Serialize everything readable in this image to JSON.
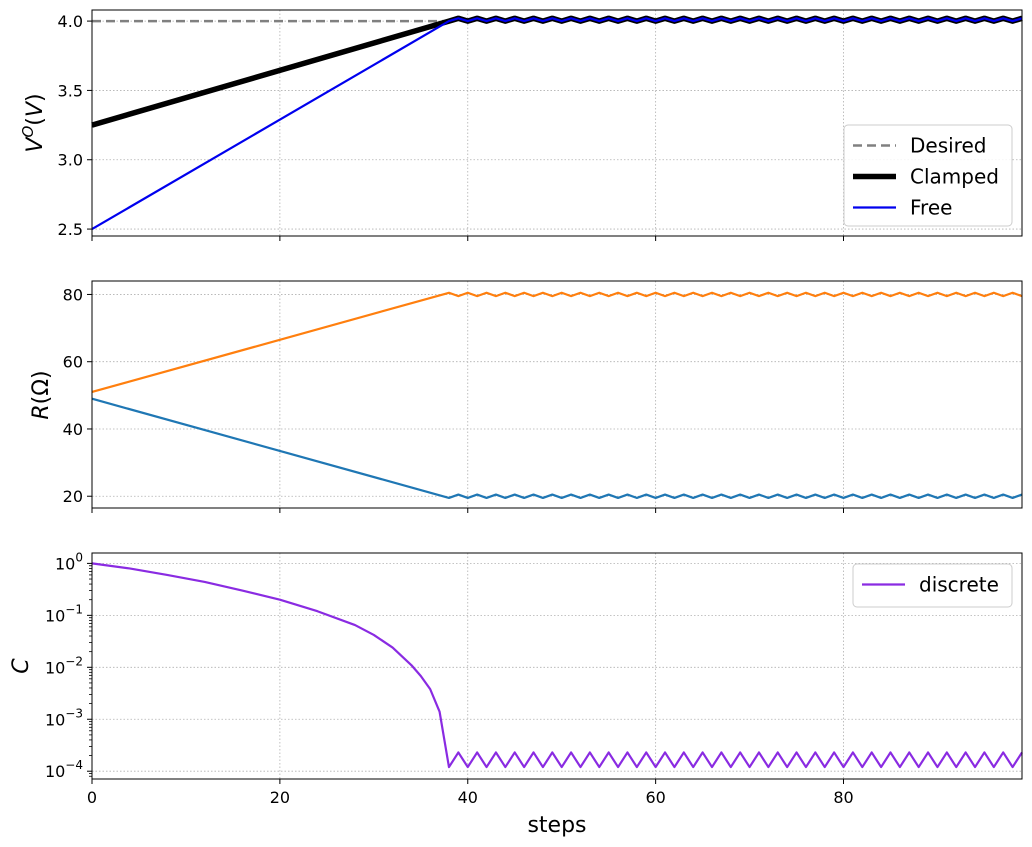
{
  "chart_data": [
    {
      "type": "line",
      "panel": "top",
      "ylabel": "V^O(V)",
      "xlim": [
        0,
        99
      ],
      "ylim": [
        2.45,
        4.08
      ],
      "yticks": [
        {
          "v": 2.5,
          "label": "2.5"
        },
        {
          "v": 3.0,
          "label": "3.0"
        },
        {
          "v": 3.5,
          "label": "3.5"
        },
        {
          "v": 4.0,
          "label": "4.0"
        }
      ],
      "grid": true,
      "legend": {
        "position": "lower-right",
        "entries": [
          {
            "name": "Desired",
            "color": "#808080",
            "style": "dashed"
          },
          {
            "name": "Clamped",
            "color": "#000000",
            "style": "thick"
          },
          {
            "name": "Free",
            "color": "#0000ee",
            "style": "solid"
          }
        ]
      },
      "series": [
        {
          "name": "Desired",
          "color": "#808080",
          "style": "dashed",
          "x": [
            0,
            38
          ],
          "y": [
            4.0,
            4.0
          ]
        },
        {
          "name": "Clamped",
          "color": "#000000",
          "style": "thick",
          "x": [
            0,
            38
          ],
          "y": [
            3.25,
            4.0
          ],
          "after": {
            "from": 38,
            "to": 99,
            "a": 4.0,
            "b": 4.02
          }
        },
        {
          "name": "Free",
          "color": "#0000ee",
          "style": "solid",
          "x": [
            0,
            38
          ],
          "y": [
            2.5,
            4.0
          ],
          "after": {
            "from": 38,
            "to": 99,
            "a": 4.0,
            "b": 4.02
          }
        }
      ]
    },
    {
      "type": "line",
      "panel": "middle",
      "ylabel": "R(Ω)",
      "xlim": [
        0,
        99
      ],
      "ylim": [
        16.5,
        84
      ],
      "yticks": [
        {
          "v": 20,
          "label": "20"
        },
        {
          "v": 40,
          "label": "40"
        },
        {
          "v": 60,
          "label": "60"
        },
        {
          "v": 80,
          "label": "80"
        }
      ],
      "grid": true,
      "series": [
        {
          "color": "#ff7f0e",
          "x": [
            0,
            38
          ],
          "y": [
            51,
            80.5
          ],
          "after": {
            "from": 38,
            "to": 99,
            "a": 80.5,
            "b": 79.5
          }
        },
        {
          "color": "#1f77b4",
          "x": [
            0,
            38
          ],
          "y": [
            49,
            19.5
          ],
          "after": {
            "from": 38,
            "to": 99,
            "a": 19.5,
            "b": 20.5
          }
        }
      ]
    },
    {
      "type": "line",
      "panel": "bottom",
      "ylabel": "C",
      "xlabel": "steps",
      "xlim": [
        0,
        99
      ],
      "yscale": "log",
      "ylim_log10": [
        -4.15,
        0.2
      ],
      "yticks": [
        {
          "v": 0,
          "base": "10",
          "exp": "0"
        },
        {
          "v": -1,
          "base": "10",
          "exp": "−1"
        },
        {
          "v": -2,
          "base": "10",
          "exp": "−2"
        },
        {
          "v": -3,
          "base": "10",
          "exp": "−3"
        },
        {
          "v": -4,
          "base": "10",
          "exp": "−4"
        }
      ],
      "xticks": [
        {
          "v": 0,
          "label": "0"
        },
        {
          "v": 20,
          "label": "20"
        },
        {
          "v": 40,
          "label": "40"
        },
        {
          "v": 60,
          "label": "60"
        },
        {
          "v": 80,
          "label": "80"
        }
      ],
      "grid": true,
      "legend": {
        "position": "upper-right",
        "entries": [
          {
            "name": "discrete",
            "color": "#8a2be2",
            "style": "solid"
          }
        ]
      },
      "series": [
        {
          "name": "discrete",
          "color": "#8a2be2",
          "x": [
            0,
            4,
            8,
            12,
            16,
            20,
            24,
            28,
            30,
            32,
            34,
            35,
            36,
            37,
            38
          ],
          "y": [
            1.0,
            0.8,
            0.6,
            0.44,
            0.3,
            0.2,
            0.12,
            0.065,
            0.042,
            0.024,
            0.011,
            0.0068,
            0.0038,
            0.0014,
            0.00012
          ],
          "after": {
            "from": 38,
            "to": 99,
            "a": 0.00012,
            "b": 0.00023
          }
        }
      ]
    }
  ]
}
